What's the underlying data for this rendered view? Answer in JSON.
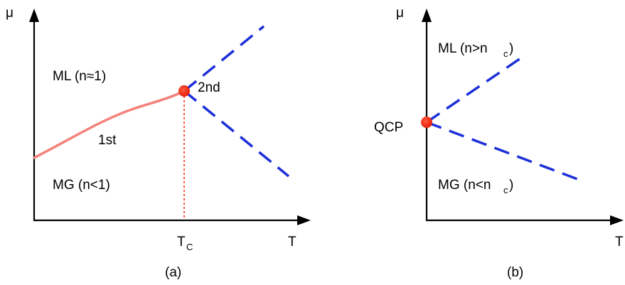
{
  "panel_a": {
    "y_axis_label": "μ",
    "x_axis_label": "T",
    "tc_main": "T",
    "tc_sub": "C",
    "region_upper": "ML (n≈1)",
    "region_lower": "MG (n<1)",
    "first_order_label": "1st",
    "second_order_label": "2nd",
    "caption": "(a)"
  },
  "panel_b": {
    "y_axis_label": "μ",
    "x_axis_label": "T",
    "qcp_label": "QCP",
    "upper_main": "ML (n>n",
    "upper_sub": "c",
    "upper_close": ")",
    "lower_main": "MG (n<n",
    "lower_sub": "c",
    "lower_close": ")",
    "caption": "(b)"
  },
  "colors": {
    "axis": "#000000",
    "first_order_line": "#f4827a",
    "second_order_line": "#1c2fd8",
    "critical_point": "#ff2a10",
    "tc_dotted": "#ff2a10"
  }
}
